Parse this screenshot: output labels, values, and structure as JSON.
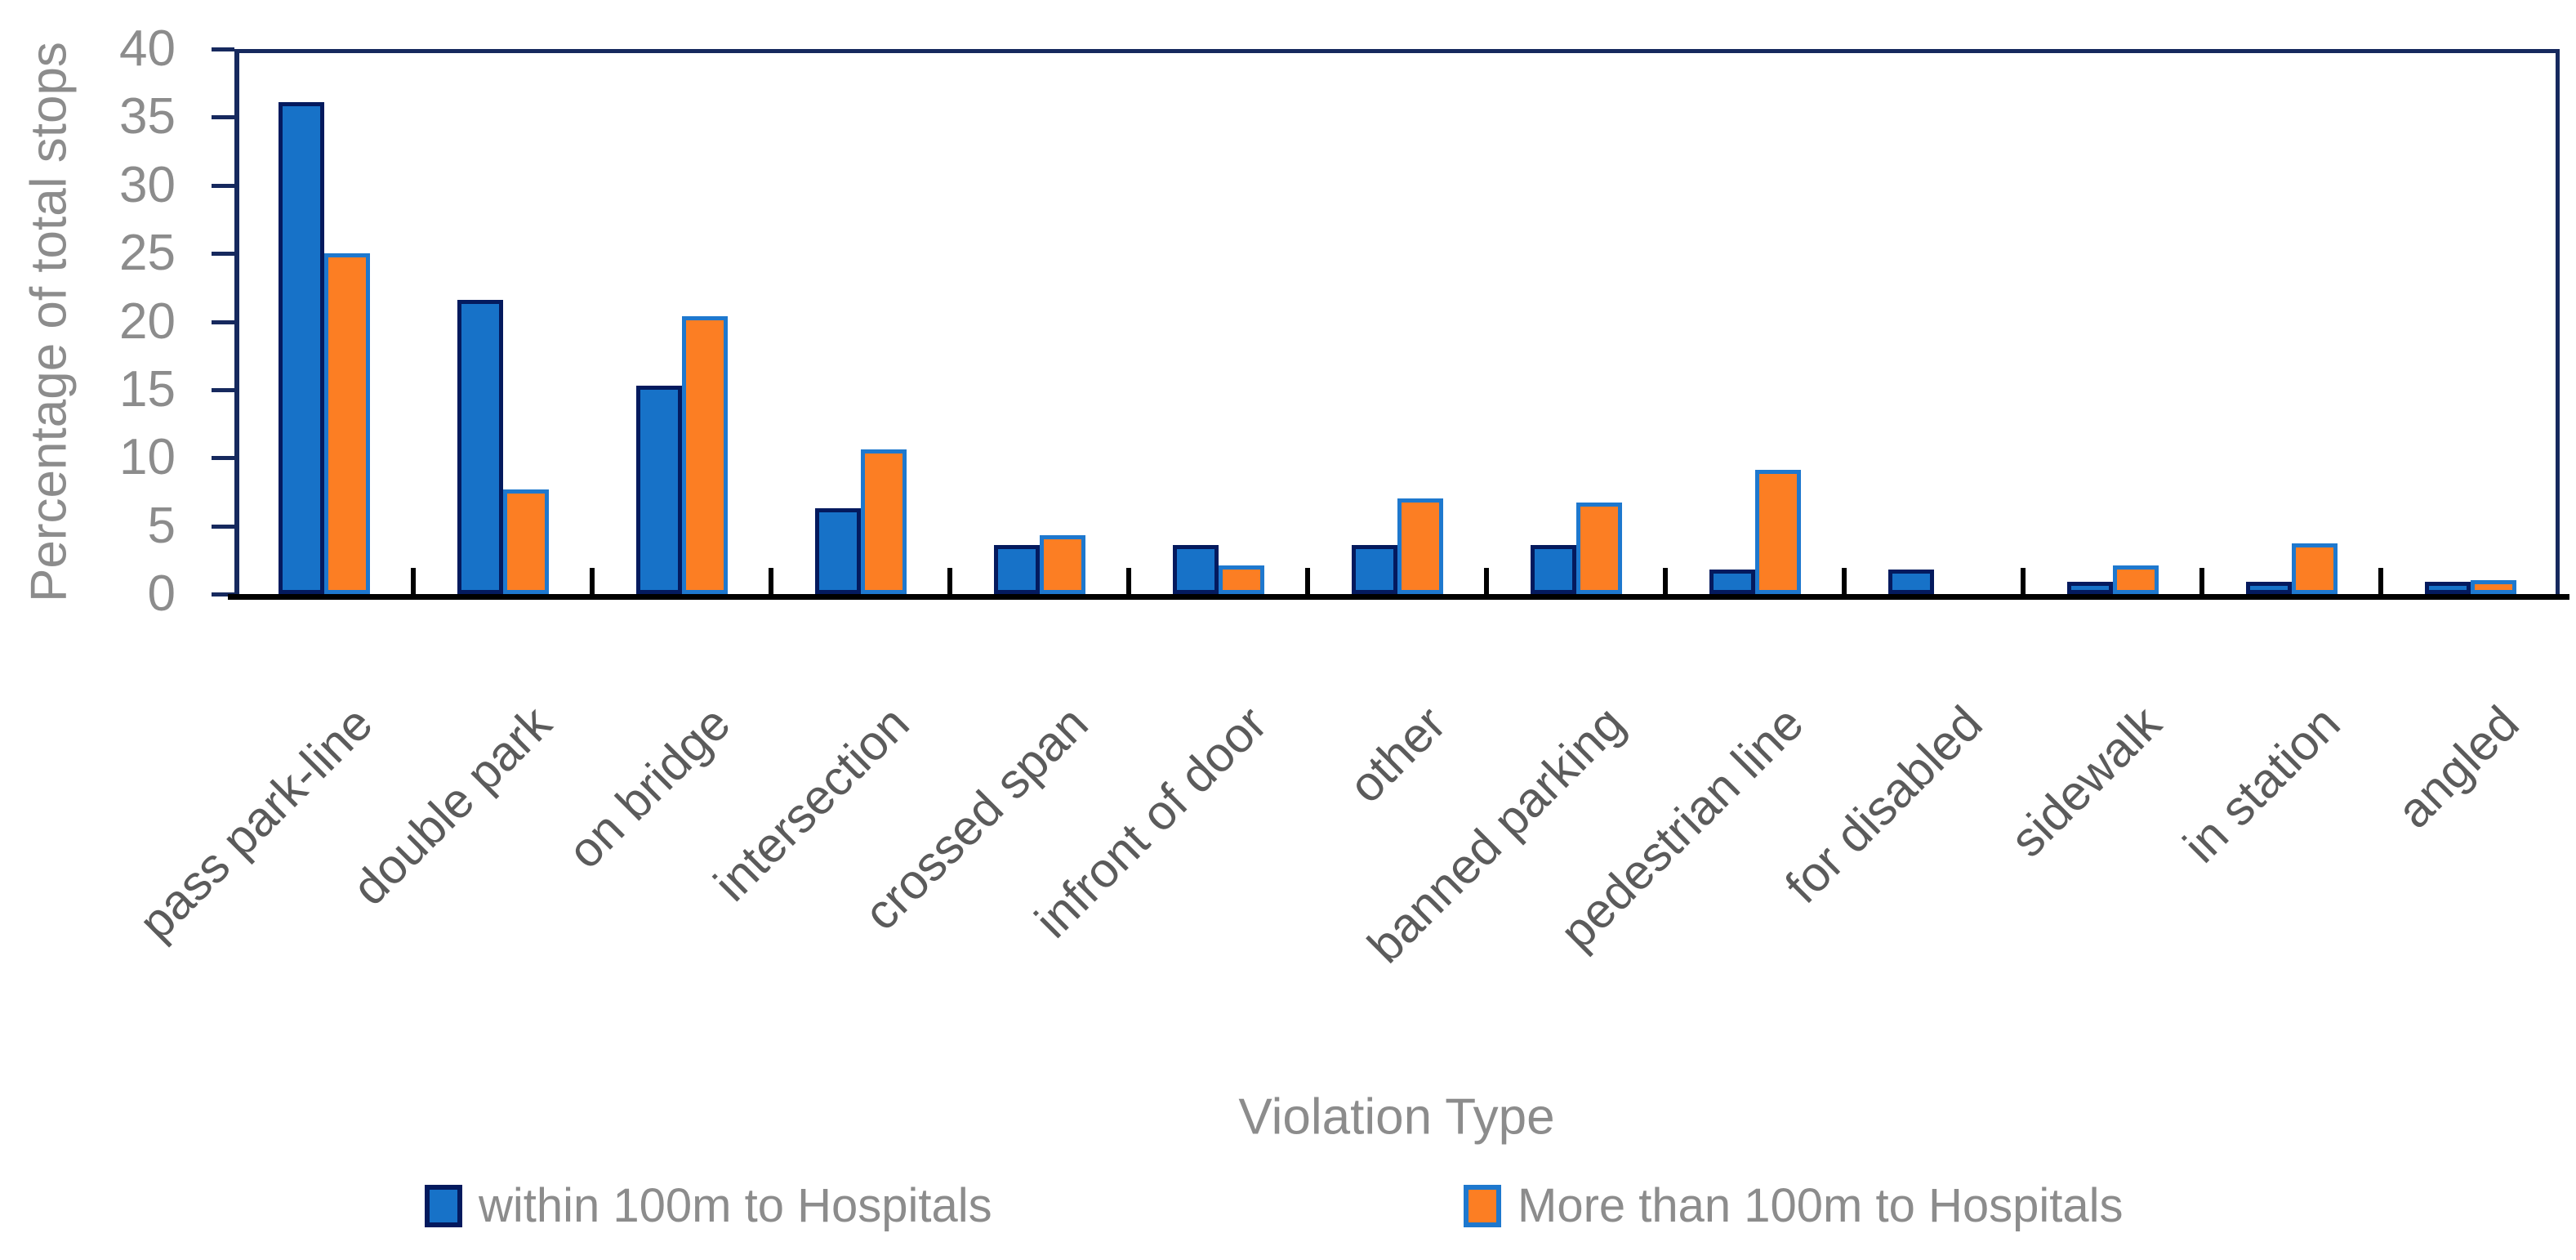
{
  "chart_data": {
    "type": "bar",
    "title": "",
    "xlabel": "Violation Type",
    "ylabel": "Percentage of total stops",
    "categories": [
      "pass park-line",
      "double park",
      "on bridge",
      "intersection",
      "crossed span",
      "infront of door",
      "other",
      "banned parking",
      "pedestrian line",
      "for disabled",
      "sidewalk",
      "in station",
      "angled"
    ],
    "series": [
      {
        "name": "within 100m to Hospitals",
        "fill_color": "#1772C8",
        "border_color": "#041A5E",
        "values": [
          36.1,
          21.6,
          15.3,
          6.3,
          3.6,
          3.6,
          3.6,
          3.6,
          1.8,
          1.8,
          0.9,
          0.9,
          0.9
        ]
      },
      {
        "name": "More than 100m to Hospitals",
        "fill_color": "#FC7E23",
        "border_color": "#1E78CE",
        "values": [
          25.0,
          7.7,
          20.4,
          10.6,
          4.3,
          2.1,
          7.0,
          6.7,
          9.1,
          0,
          2.1,
          3.7,
          1.0
        ]
      }
    ],
    "ylim": [
      0,
      40
    ],
    "yticks": [
      0,
      5,
      10,
      15,
      20,
      25,
      30,
      35,
      40
    ],
    "grid": false,
    "legend_position": "bottom"
  },
  "colors": {
    "plot_border": "#16295E",
    "x_axis_line": "#000000",
    "ytick_color": "#16295E",
    "tick_label_color": "#8C8C8C",
    "category_label_color": "#5B5B5B",
    "axis_title_color": "#8C8C8C",
    "legend_text_color": "#8C8C8C"
  }
}
